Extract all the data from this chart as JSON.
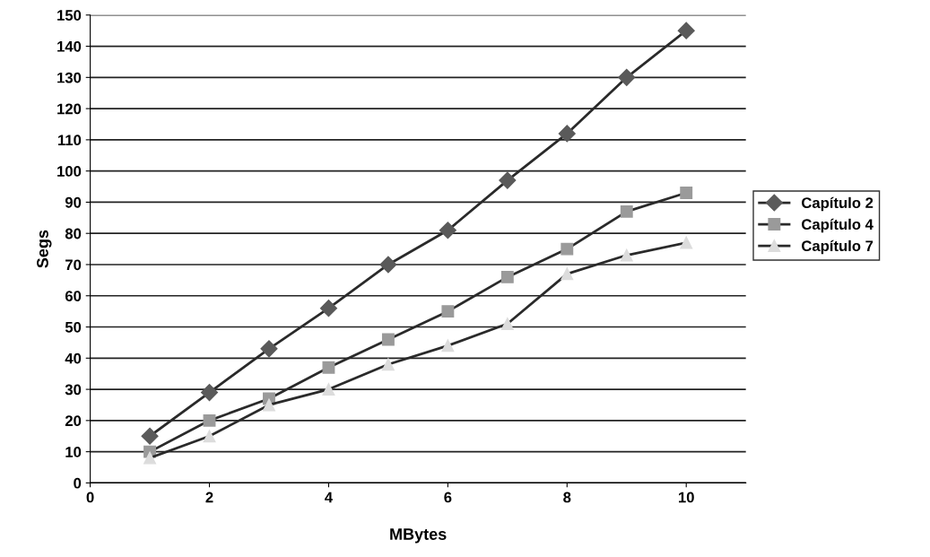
{
  "chart_data": {
    "type": "line",
    "xlabel": "MBytes",
    "ylabel": "Segs",
    "x": [
      1,
      2,
      3,
      4,
      5,
      6,
      7,
      8,
      9,
      10
    ],
    "series": [
      {
        "name": "Capítulo 2",
        "color": "#5a5a5a",
        "marker": "diamond",
        "values": [
          15,
          29,
          43,
          56,
          70,
          81,
          97,
          112,
          130,
          145
        ]
      },
      {
        "name": "Capítulo 4",
        "color": "#9a9a9a",
        "marker": "square",
        "values": [
          10,
          20,
          27,
          37,
          46,
          55,
          66,
          75,
          87,
          93
        ]
      },
      {
        "name": "Capítulo 7",
        "color": "#dcdcdc",
        "marker": "triangle",
        "values": [
          8,
          15,
          25,
          30,
          38,
          44,
          51,
          67,
          73,
          77
        ]
      }
    ],
    "xlim": [
      0,
      11
    ],
    "xticks": [
      0,
      2,
      4,
      6,
      8,
      10
    ],
    "ylim": [
      0,
      150
    ],
    "yticks": [
      0,
      10,
      20,
      30,
      40,
      50,
      60,
      70,
      80,
      90,
      100,
      110,
      120,
      130,
      140,
      150
    ],
    "grid": "y",
    "legend": "right",
    "line_style": "solid"
  }
}
